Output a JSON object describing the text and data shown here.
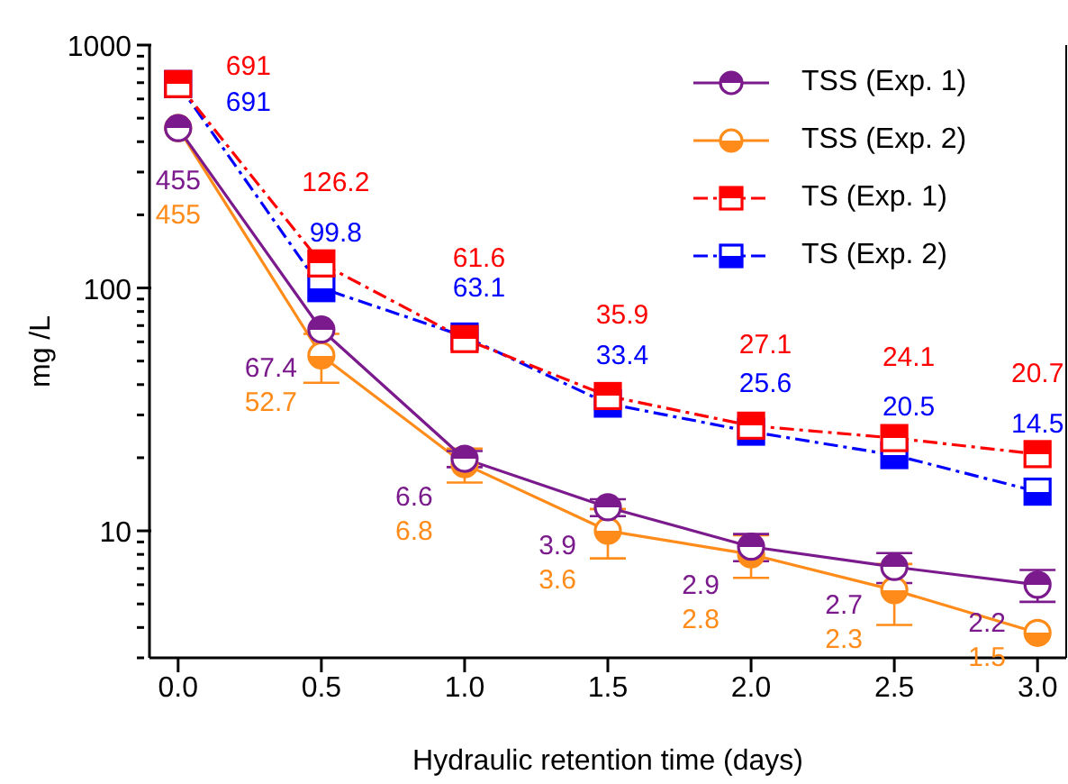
{
  "chart_data": {
    "type": "line",
    "xlabel": "Hydraulic retention time (days)",
    "ylabel": "mg /L",
    "x": [
      0,
      0.5,
      1.0,
      1.5,
      2.0,
      2.5,
      3.0
    ],
    "xlim": [
      -0.1,
      3.1
    ],
    "xticks": [
      {
        "value": 0,
        "label": "0.0"
      },
      {
        "value": 0.5,
        "label": "0.5"
      },
      {
        "value": 1,
        "label": "1.0"
      },
      {
        "value": 1.5,
        "label": "1.5"
      },
      {
        "value": 2,
        "label": "2.0"
      },
      {
        "value": 2.5,
        "label": "2.5"
      },
      {
        "value": 3,
        "label": "3.0"
      }
    ],
    "log": "y",
    "ylim": [
      3,
      1000
    ],
    "yticks": [
      {
        "value": 3,
        "label": null
      },
      {
        "value": 4,
        "label": null
      },
      {
        "value": 5,
        "label": null
      },
      {
        "value": 6,
        "label": null
      },
      {
        "value": 7,
        "label": null
      },
      {
        "value": 8,
        "label": null
      },
      {
        "value": 9,
        "label": null
      },
      10,
      {
        "value": 20,
        "label": null
      },
      {
        "value": 30,
        "label": null
      },
      {
        "value": 40,
        "label": null
      },
      {
        "value": 50,
        "label": null
      },
      {
        "value": 60,
        "label": null
      },
      {
        "value": 70,
        "label": null
      },
      {
        "value": 80,
        "label": null
      },
      {
        "value": 90,
        "label": null
      },
      100,
      {
        "value": 200,
        "label": null
      },
      {
        "value": 300,
        "label": null
      },
      {
        "value": 400,
        "label": null
      },
      {
        "value": 500,
        "label": null
      },
      {
        "value": 600,
        "label": null
      },
      {
        "value": 700,
        "label": null
      },
      {
        "value": 800,
        "label": null
      },
      {
        "value": 900,
        "label": null
      },
      1000
    ],
    "grid": false,
    "legend": "top right",
    "annotations": [
      {
        "text": "6.6",
        "x": 1.0,
        "y": 19.8
      },
      {
        "text": "3.9",
        "x": 1.5,
        "y": 12.5
      },
      {
        "text": "2.9",
        "x": 2.0,
        "y": 8.6
      },
      {
        "text": "2.7",
        "x": 2.5,
        "y": 7.1
      },
      {
        "text": "2.2",
        "x": 3.0,
        "y": 6.0
      },
      {
        "text": "6.8",
        "x": 1.0,
        "y": 18.8
      },
      {
        "text": "3.6",
        "x": 1.5,
        "y": 10.0
      },
      {
        "text": "2.8",
        "x": 2.0,
        "y": 8.0
      },
      {
        "text": "2.3",
        "x": 2.5,
        "y": 5.7
      },
      {
        "text": "1.5",
        "x": 3.0,
        "y": 3.8
      }
    ],
    "series": [
      {
        "name": "TSS (Exp. 1)",
        "color": "#7b1a8c",
        "marker": "circle",
        "line_style": "solid",
        "values": [
          455,
          67.4,
          19.8,
          12.5,
          8.6,
          7.1,
          6.0
        ],
        "errors": [
          null,
          null,
          1.5,
          1.0,
          1.1,
          1.0,
          0.9
        ],
        "value_labels": [
          "455",
          "67.4",
          null,
          null,
          null,
          null,
          null
        ]
      },
      {
        "name": "TSS (Exp. 2)",
        "color": "#ff8c1a",
        "marker": "circle",
        "line_style": "solid",
        "values": [
          455,
          52.7,
          18.8,
          10.0,
          8.0,
          5.7,
          3.8
        ],
        "errors": [
          null,
          12,
          3.0,
          2.3,
          1.6,
          1.6,
          null
        ],
        "value_labels": [
          "455",
          "52.7",
          null,
          null,
          null,
          null,
          null
        ]
      },
      {
        "name": "TS (Exp. 1)",
        "color": "#ff0000",
        "marker": "square",
        "line_style": "dashed",
        "values": [
          691,
          126.2,
          61.6,
          35.9,
          27.1,
          24.1,
          20.7
        ],
        "value_labels": [
          "691",
          "126.2",
          "61.6",
          "35.9",
          "27.1",
          "24.1",
          "20.7"
        ]
      },
      {
        "name": "TS (Exp. 2)",
        "color": "#0000ff",
        "marker": "square",
        "line_style": "dashed",
        "values": [
          691,
          99.8,
          63.1,
          33.4,
          25.6,
          20.5,
          14.5
        ],
        "value_labels": [
          "691",
          "99.8",
          "63.1",
          "33.4",
          "25.6",
          "20.5",
          "14.5"
        ]
      }
    ]
  }
}
